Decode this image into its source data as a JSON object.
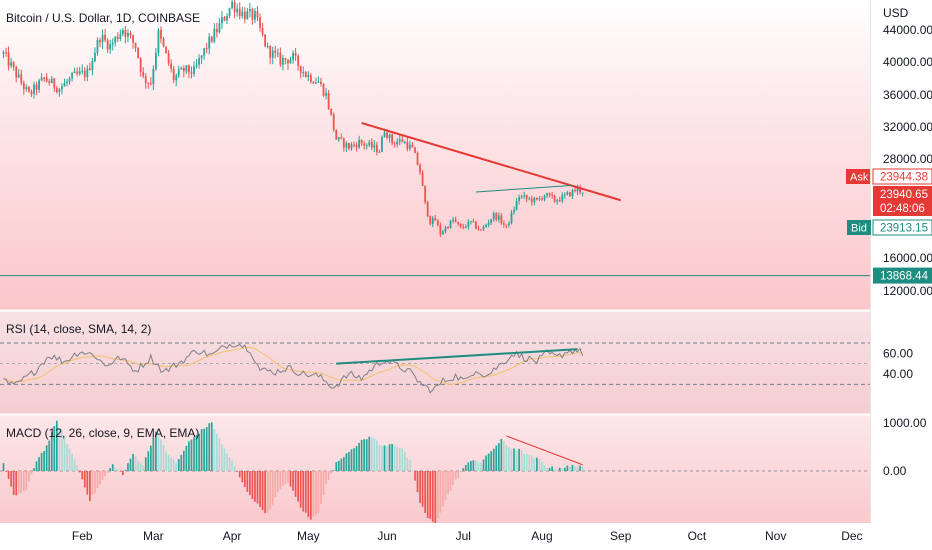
{
  "header": {
    "symbol_title": "Bitcoin / U.S. Dollar, 1D, COINBASE"
  },
  "price_axis": {
    "currency": "USD",
    "ticks": [
      {
        "value": 44000,
        "label": "44000.00"
      },
      {
        "value": 40000,
        "label": "40000.00"
      },
      {
        "value": 36000,
        "label": "36000.00"
      },
      {
        "value": 32000,
        "label": "32000.00"
      },
      {
        "value": 28000,
        "label": "28000.00"
      },
      {
        "value": 16000,
        "label": "16000.00"
      },
      {
        "value": 12000,
        "label": "12000.00"
      }
    ],
    "badges": [
      {
        "tag": "Ask",
        "value": 23944.38,
        "label": "23944.38",
        "color": "#e53935"
      },
      {
        "tag": "",
        "value": 23940.65,
        "label": "23940.65",
        "sub": "02:48:06",
        "color": "#e53935"
      },
      {
        "tag": "Bid",
        "value": 23913.15,
        "label": "23913.15",
        "color": "#1e8c7e"
      },
      {
        "tag": "",
        "value": 13868.44,
        "label": "13868.44",
        "color": "#1e8c7e"
      }
    ]
  },
  "rsi_panel": {
    "title": "RSI (14, close, SMA, 14, 2)",
    "ticks": [
      {
        "value": 60,
        "label": "60.00"
      },
      {
        "value": 40,
        "label": "40.00"
      }
    ],
    "upper_band": 70,
    "lower_band": 30
  },
  "macd_panel": {
    "title": "MACD (12, 26, close, 9, EMA, EMA)",
    "ticks": [
      {
        "value": 1000,
        "label": "1000.00"
      },
      {
        "value": 0,
        "label": "0.00"
      }
    ]
  },
  "time_axis": {
    "labels": [
      {
        "label": "Feb",
        "day": 31
      },
      {
        "label": "Mar",
        "day": 59
      },
      {
        "label": "Apr",
        "day": 90
      },
      {
        "label": "May",
        "day": 120
      },
      {
        "label": "Jun",
        "day": 151
      },
      {
        "label": "Jul",
        "day": 181
      },
      {
        "label": "Aug",
        "day": 212
      },
      {
        "label": "Sep",
        "day": 243
      },
      {
        "label": "Oct",
        "day": 273
      },
      {
        "label": "Nov",
        "day": 304
      },
      {
        "label": "Dec",
        "day": 334
      }
    ]
  },
  "chart_data": {
    "type": "candlestick",
    "symbol": "Bitcoin / U.S. Dollar",
    "interval": "1D",
    "exchange": "COINBASE",
    "price_anchors": [
      {
        "day": 0,
        "price": 41000
      },
      {
        "day": 5,
        "price": 38500
      },
      {
        "day": 10,
        "price": 36000
      },
      {
        "day": 16,
        "price": 38000
      },
      {
        "day": 22,
        "price": 36800
      },
      {
        "day": 28,
        "price": 38300
      },
      {
        "day": 33,
        "price": 38700
      },
      {
        "day": 38,
        "price": 43200
      },
      {
        "day": 42,
        "price": 42000
      },
      {
        "day": 47,
        "price": 44200
      },
      {
        "day": 52,
        "price": 42000
      },
      {
        "day": 55,
        "price": 38000
      },
      {
        "day": 58,
        "price": 37500
      },
      {
        "day": 61,
        "price": 43500
      },
      {
        "day": 67,
        "price": 38000
      },
      {
        "day": 71,
        "price": 39000
      },
      {
        "day": 75,
        "price": 38800
      },
      {
        "day": 80,
        "price": 42000
      },
      {
        "day": 85,
        "price": 44500
      },
      {
        "day": 90,
        "price": 47200
      },
      {
        "day": 94,
        "price": 46000
      },
      {
        "day": 99,
        "price": 45600
      },
      {
        "day": 104,
        "price": 41500
      },
      {
        "day": 109,
        "price": 40200
      },
      {
        "day": 114,
        "price": 40500
      },
      {
        "day": 119,
        "price": 38500
      },
      {
        "day": 124,
        "price": 37600
      },
      {
        "day": 127,
        "price": 36000
      },
      {
        "day": 131,
        "price": 30500
      },
      {
        "day": 136,
        "price": 29500
      },
      {
        "day": 140,
        "price": 30100
      },
      {
        "day": 145,
        "price": 29500
      },
      {
        "day": 148,
        "price": 29100
      },
      {
        "day": 150,
        "price": 31700
      },
      {
        "day": 153,
        "price": 30100
      },
      {
        "day": 157,
        "price": 30300
      },
      {
        "day": 161,
        "price": 29200
      },
      {
        "day": 164,
        "price": 26500
      },
      {
        "day": 166,
        "price": 22500
      },
      {
        "day": 168,
        "price": 20400
      },
      {
        "day": 170,
        "price": 20600
      },
      {
        "day": 172,
        "price": 19000
      },
      {
        "day": 177,
        "price": 20600
      },
      {
        "day": 180,
        "price": 19600
      },
      {
        "day": 184,
        "price": 20300
      },
      {
        "day": 188,
        "price": 19300
      },
      {
        "day": 193,
        "price": 21200
      },
      {
        "day": 195,
        "price": 20800
      },
      {
        "day": 198,
        "price": 19700
      },
      {
        "day": 201,
        "price": 22000
      },
      {
        "day": 203,
        "price": 23500
      },
      {
        "day": 206,
        "price": 23200
      },
      {
        "day": 210,
        "price": 22900
      },
      {
        "day": 213,
        "price": 23700
      },
      {
        "day": 217,
        "price": 23000
      },
      {
        "day": 220,
        "price": 23300
      },
      {
        "day": 224,
        "price": 24000
      },
      {
        "day": 226,
        "price": 24400
      },
      {
        "day": 228,
        "price": 23940.65
      }
    ],
    "resistance_trendline": {
      "from": {
        "day": 141,
        "price": 32500
      },
      "to": {
        "day": 243,
        "price": 23000
      },
      "color": "#e53935"
    },
    "pattern_line": {
      "from": {
        "day": 186,
        "price": 24000
      },
      "to": {
        "day": 224,
        "price": 24800
      },
      "color": "#1e8c7e"
    },
    "rsi": {
      "overbought": 70,
      "oversold": 30,
      "anchors": [
        {
          "day": 0,
          "value": 34
        },
        {
          "day": 4,
          "value": 28
        },
        {
          "day": 12,
          "value": 42
        },
        {
          "day": 18,
          "value": 58
        },
        {
          "day": 24,
          "value": 52
        },
        {
          "day": 30,
          "value": 62
        },
        {
          "day": 36,
          "value": 58
        },
        {
          "day": 40,
          "value": 48
        },
        {
          "day": 46,
          "value": 56
        },
        {
          "day": 52,
          "value": 43
        },
        {
          "day": 58,
          "value": 56
        },
        {
          "day": 63,
          "value": 42
        },
        {
          "day": 70,
          "value": 52
        },
        {
          "day": 76,
          "value": 63
        },
        {
          "day": 82,
          "value": 58
        },
        {
          "day": 88,
          "value": 68
        },
        {
          "day": 92,
          "value": 70
        },
        {
          "day": 97,
          "value": 64
        },
        {
          "day": 101,
          "value": 44
        },
        {
          "day": 107,
          "value": 42
        },
        {
          "day": 112,
          "value": 46
        },
        {
          "day": 118,
          "value": 40
        },
        {
          "day": 124,
          "value": 38
        },
        {
          "day": 130,
          "value": 27
        },
        {
          "day": 136,
          "value": 40
        },
        {
          "day": 141,
          "value": 36
        },
        {
          "day": 145,
          "value": 45
        },
        {
          "day": 150,
          "value": 54
        },
        {
          "day": 155,
          "value": 48
        },
        {
          "day": 160,
          "value": 42
        },
        {
          "day": 165,
          "value": 29
        },
        {
          "day": 169,
          "value": 24
        },
        {
          "day": 173,
          "value": 33
        },
        {
          "day": 178,
          "value": 38
        },
        {
          "day": 182,
          "value": 33
        },
        {
          "day": 186,
          "value": 45
        },
        {
          "day": 190,
          "value": 38
        },
        {
          "day": 196,
          "value": 50
        },
        {
          "day": 201,
          "value": 60
        },
        {
          "day": 205,
          "value": 56
        },
        {
          "day": 210,
          "value": 52
        },
        {
          "day": 214,
          "value": 60
        },
        {
          "day": 218,
          "value": 56
        },
        {
          "day": 222,
          "value": 62
        },
        {
          "day": 226,
          "value": 63
        },
        {
          "day": 228,
          "value": 60
        }
      ],
      "divergence_line": {
        "from": {
          "day": 131,
          "value": 50
        },
        "to": {
          "day": 226,
          "value": 64
        },
        "color": "#1e8c7e"
      }
    },
    "macd": {
      "histogram_anchors": [
        {
          "day": 0,
          "value": 160
        },
        {
          "day": 4,
          "value": -520
        },
        {
          "day": 9,
          "value": -400
        },
        {
          "day": 13,
          "value": 220
        },
        {
          "day": 17,
          "value": 520
        },
        {
          "day": 21,
          "value": 1040
        },
        {
          "day": 24,
          "value": 700
        },
        {
          "day": 29,
          "value": 120
        },
        {
          "day": 34,
          "value": -610
        },
        {
          "day": 39,
          "value": -200
        },
        {
          "day": 43,
          "value": 130
        },
        {
          "day": 47,
          "value": -80
        },
        {
          "day": 51,
          "value": 360
        },
        {
          "day": 55,
          "value": 120
        },
        {
          "day": 60,
          "value": 850
        },
        {
          "day": 64,
          "value": 410
        },
        {
          "day": 68,
          "value": 160
        },
        {
          "day": 73,
          "value": 600
        },
        {
          "day": 78,
          "value": 850
        },
        {
          "day": 82,
          "value": 1010
        },
        {
          "day": 86,
          "value": 550
        },
        {
          "day": 90,
          "value": 200
        },
        {
          "day": 95,
          "value": -350
        },
        {
          "day": 100,
          "value": -700
        },
        {
          "day": 104,
          "value": -900
        },
        {
          "day": 108,
          "value": -450
        },
        {
          "day": 112,
          "value": -220
        },
        {
          "day": 117,
          "value": -760
        },
        {
          "day": 121,
          "value": -1020
        },
        {
          "day": 124,
          "value": -850
        },
        {
          "day": 127,
          "value": -300
        },
        {
          "day": 131,
          "value": 160
        },
        {
          "day": 136,
          "value": 420
        },
        {
          "day": 141,
          "value": 620
        },
        {
          "day": 145,
          "value": 730
        },
        {
          "day": 149,
          "value": 500
        },
        {
          "day": 153,
          "value": 580
        },
        {
          "day": 157,
          "value": 460
        },
        {
          "day": 160,
          "value": 200
        },
        {
          "day": 164,
          "value": -650
        },
        {
          "day": 167,
          "value": -980
        },
        {
          "day": 170,
          "value": -1100
        },
        {
          "day": 174,
          "value": -600
        },
        {
          "day": 178,
          "value": -200
        },
        {
          "day": 181,
          "value": 60
        },
        {
          "day": 185,
          "value": 250
        },
        {
          "day": 188,
          "value": 170
        },
        {
          "day": 192,
          "value": 420
        },
        {
          "day": 196,
          "value": 640
        },
        {
          "day": 199,
          "value": 500
        },
        {
          "day": 203,
          "value": 440
        },
        {
          "day": 207,
          "value": 320
        },
        {
          "day": 211,
          "value": 230
        },
        {
          "day": 214,
          "value": 80
        },
        {
          "day": 218,
          "value": 60
        },
        {
          "day": 222,
          "value": 90
        },
        {
          "day": 226,
          "value": 120
        },
        {
          "day": 228,
          "value": 100
        }
      ],
      "divergence_line": {
        "from": {
          "day": 198,
          "value": 730
        },
        "to": {
          "day": 228,
          "value": 130
        },
        "color": "#e53935"
      }
    },
    "colors": {
      "up": "#26a69a",
      "down": "#ef5350",
      "rsi_line": "#7d7f88",
      "rsi_ma": "#f3c47a",
      "price_bg": "#fbc9cc",
      "indicator_bg": "#f8d7da"
    }
  }
}
